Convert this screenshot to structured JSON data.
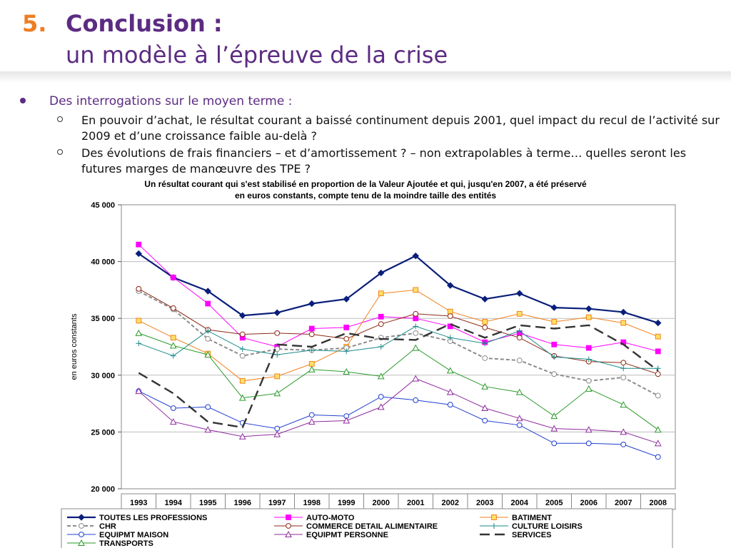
{
  "slide": {
    "number": "5.",
    "title": "Conclusion :",
    "subtitle": "un modèle à l’épreuve de la crise",
    "bullet": "Des interrogations sur le moyen terme :",
    "sub_bullets": [
      "En pouvoir d’achat, le résultat courant a baissé continument depuis 2001, quel impact du recul de l’activité sur 2009 et d’une croissance faible au-delà ?",
      "Des évolutions de frais financiers – et d’amortissement ? – non extrapolables à terme… quelles seront les futures marges de manœuvre des TPE ?"
    ]
  },
  "chart_data": {
    "type": "line",
    "title_line1": "Un résultat courant qui s'est stabilisé en proportion de la Valeur Ajoutée et qui, jusqu'en 2007, a été préservé",
    "title_line2": "en euros constants, compte tenu de la moindre taille des entités",
    "ylabel": "en euros constants",
    "xlabel": "",
    "ylim": [
      20000,
      45000
    ],
    "y_ticks": [
      "20 000",
      "25 000",
      "30 000",
      "35 000",
      "40 000",
      "45 000"
    ],
    "categories": [
      "1993",
      "1994",
      "1995",
      "1996",
      "1997",
      "1998",
      "1999",
      "2000",
      "2001",
      "2002",
      "2003",
      "2004",
      "2005",
      "2006",
      "2007",
      "2008"
    ],
    "grid": "horizontal",
    "legend_position": "bottom",
    "series": [
      {
        "name": "TOUTES LES PROFESSIONS",
        "color": "#0a1f7a",
        "marker": "diamond",
        "dash": "solid",
        "width": 2.2,
        "values": [
          40700,
          38600,
          37400,
          35250,
          35500,
          36300,
          36700,
          39000,
          40500,
          37900,
          36700,
          37200,
          35950,
          35850,
          35550,
          34600
        ]
      },
      {
        "name": "AUTO-MOTO",
        "color": "#ff00ff",
        "marker": "square",
        "dash": "solid",
        "width": 1,
        "values": [
          41500,
          38600,
          36300,
          33300,
          32500,
          34100,
          34200,
          35150,
          35000,
          34300,
          32900,
          33700,
          32700,
          32400,
          32900,
          32100
        ]
      },
      {
        "name": "BATIMENT",
        "color": "#f0821e",
        "marker": "square-open",
        "dash": "solid",
        "width": 1,
        "values": [
          34800,
          33300,
          31900,
          29500,
          29900,
          31000,
          32500,
          37200,
          37500,
          35600,
          34700,
          35400,
          34700,
          35100,
          34600,
          33400
        ]
      },
      {
        "name": "CHR",
        "color": "#8c8c8c",
        "marker": "circle-open",
        "dash": "dashed",
        "width": 2,
        "values": [
          37400,
          35800,
          33200,
          31700,
          32300,
          32200,
          32400,
          33300,
          33700,
          33000,
          31500,
          31300,
          30100,
          29500,
          29800,
          28200
        ]
      },
      {
        "name": "COMMERCE DETAIL ALIMENTAIRE",
        "color": "#8b2a14",
        "marker": "circle-open",
        "dash": "solid",
        "width": 1,
        "values": [
          37600,
          35900,
          34000,
          33600,
          33700,
          33600,
          33200,
          34500,
          35400,
          35200,
          34200,
          33300,
          31700,
          31200,
          31100,
          30100
        ]
      },
      {
        "name": "CULTURE LOISIRS",
        "color": "#1a8a8a",
        "marker": "plus",
        "dash": "solid",
        "width": 1,
        "values": [
          32800,
          31700,
          33900,
          32300,
          31800,
          32200,
          32100,
          32500,
          34300,
          33300,
          32800,
          33900,
          31600,
          31400,
          30600,
          30600
        ]
      },
      {
        "name": "EQUIPMT MAISON",
        "color": "#1f3fd0",
        "marker": "circle-open",
        "dash": "solid",
        "width": 1,
        "values": [
          28600,
          27100,
          27200,
          25800,
          25300,
          26500,
          26400,
          28100,
          27800,
          27400,
          26000,
          25600,
          24000,
          24000,
          23900,
          22800
        ]
      },
      {
        "name": "EQUIPMT PERSONNE",
        "color": "#8e2a9e",
        "marker": "triangle-open",
        "dash": "solid",
        "width": 1,
        "values": [
          28600,
          25900,
          25200,
          24600,
          24800,
          25900,
          26000,
          27200,
          29700,
          28500,
          27100,
          26200,
          25300,
          25200,
          25000,
          24000
        ]
      },
      {
        "name": "SERVICES",
        "color": "#333333",
        "marker": "none",
        "dash": "longdash",
        "width": 2.4,
        "values": [
          30200,
          28400,
          25900,
          25400,
          32700,
          32500,
          33700,
          33200,
          33100,
          34500,
          33300,
          34400,
          34100,
          34400,
          32700,
          30400
        ]
      },
      {
        "name": "TRANSPORTS",
        "color": "#2a9a2a",
        "marker": "triangle-open",
        "dash": "solid",
        "width": 1,
        "values": [
          33700,
          32600,
          31800,
          28000,
          28400,
          30500,
          30300,
          29900,
          32400,
          30400,
          29000,
          28500,
          26400,
          28800,
          27400,
          25200
        ]
      }
    ]
  }
}
